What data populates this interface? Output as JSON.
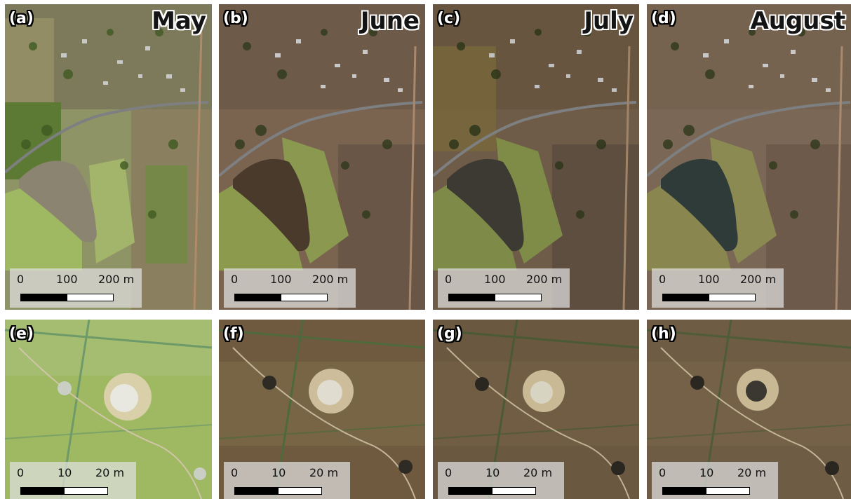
{
  "panels": [
    {
      "label": "(a)",
      "month": "May",
      "ticks": [
        "0",
        "100",
        "200 m"
      ]
    },
    {
      "label": "(b)",
      "month": "June",
      "ticks": [
        "0",
        "100",
        "200 m"
      ]
    },
    {
      "label": "(c)",
      "month": "July",
      "ticks": [
        "0",
        "100",
        "200 m"
      ]
    },
    {
      "label": "(d)",
      "month": "August",
      "ticks": [
        "0",
        "100",
        "200 m"
      ]
    },
    {
      "label": "(e)",
      "ticks": [
        "0",
        "10",
        "20 m"
      ]
    },
    {
      "label": "(f)",
      "ticks": [
        "0",
        "10",
        "20 m"
      ]
    },
    {
      "label": "(g)",
      "ticks": [
        "0",
        "10",
        "20 m"
      ]
    },
    {
      "label": "(h)",
      "ticks": [
        "0",
        "10",
        "20 m"
      ]
    }
  ],
  "colors": {
    "may_ground": "#8f9466",
    "may_veg": "#9fb862",
    "june_ground": "#7a6450",
    "june_veg": "#8b9a4c",
    "june_pond": "#4a3a2c",
    "july_ground": "#6f5c48",
    "july_veg": "#7e8a48",
    "july_pond": "#3d3a33",
    "aug_ground": "#7a6755",
    "aug_veg": "#8a8650",
    "aug_pond": "#2f3b38",
    "road": "#7d7f80"
  }
}
